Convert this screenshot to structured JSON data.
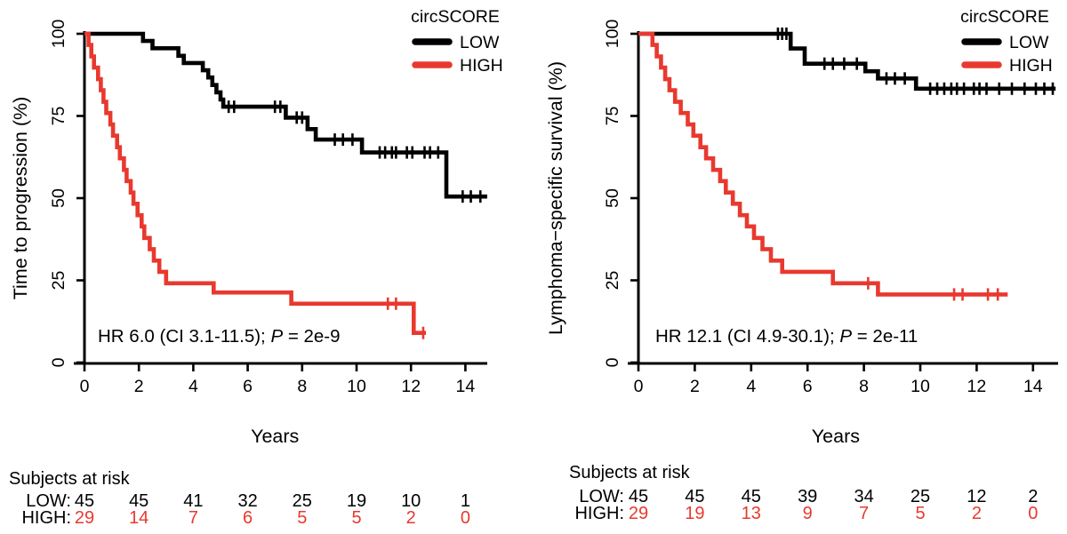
{
  "figure": {
    "legend_title": "circSCORE",
    "colors": {
      "low": "#000000",
      "high": "#e8392f"
    }
  },
  "chart_data": [
    {
      "type": "line",
      "subtype": "kaplan-meier-step-curve",
      "title": "",
      "xlabel": "Years",
      "ylabel": "Time to progression (%)",
      "xlim": [
        0,
        14.8
      ],
      "ylim": [
        0,
        100
      ],
      "xticks": [
        0,
        2,
        4,
        6,
        8,
        10,
        12,
        14
      ],
      "yticks": [
        0,
        25,
        50,
        75,
        100
      ],
      "grid": false,
      "legend": {
        "title": "circSCORE",
        "position": "top-right",
        "entries": [
          "LOW",
          "HIGH"
        ]
      },
      "annotation": {
        "before_p": "HR 6.0 (CI 3.1-11.5); ",
        "p": "P",
        "after_p": " = 2e-9"
      },
      "series": [
        {
          "name": "LOW",
          "color": "#000000",
          "end": 14.8,
          "steps": [
            [
              0,
              100
            ],
            [
              2.15,
              97.8
            ],
            [
              2.5,
              95.6
            ],
            [
              3.45,
              93.3
            ],
            [
              3.65,
              91.1
            ],
            [
              4.35,
              88.9
            ],
            [
              4.55,
              86.7
            ],
            [
              4.7,
              84.4
            ],
            [
              4.85,
              82.2
            ],
            [
              5.0,
              80.0
            ],
            [
              5.1,
              77.8
            ],
            [
              7.4,
              74.5
            ],
            [
              8.2,
              71.0
            ],
            [
              8.5,
              67.8
            ],
            [
              10.2,
              63.9
            ],
            [
              13.3,
              50.5
            ]
          ],
          "censors": [
            [
              5.3,
              77.8
            ],
            [
              5.5,
              77.8
            ],
            [
              7.0,
              77.8
            ],
            [
              7.2,
              77.8
            ],
            [
              7.8,
              74.5
            ],
            [
              8.0,
              74.5
            ],
            [
              9.2,
              67.8
            ],
            [
              9.5,
              67.8
            ],
            [
              9.85,
              67.8
            ],
            [
              10.85,
              63.9
            ],
            [
              11.05,
              63.9
            ],
            [
              11.3,
              63.9
            ],
            [
              11.45,
              63.9
            ],
            [
              11.85,
              63.9
            ],
            [
              12.05,
              63.9
            ],
            [
              12.5,
              63.9
            ],
            [
              12.7,
              63.9
            ],
            [
              13.0,
              63.9
            ],
            [
              13.9,
              50.5
            ],
            [
              14.2,
              50.5
            ],
            [
              14.55,
              50.5
            ]
          ]
        },
        {
          "name": "HIGH",
          "color": "#e8392f",
          "end": 12.55,
          "steps": [
            [
              0,
              100
            ],
            [
              0.15,
              96.6
            ],
            [
              0.25,
              93.1
            ],
            [
              0.35,
              89.7
            ],
            [
              0.5,
              86.2
            ],
            [
              0.6,
              82.8
            ],
            [
              0.7,
              79.3
            ],
            [
              0.8,
              75.9
            ],
            [
              0.95,
              72.4
            ],
            [
              1.05,
              69.0
            ],
            [
              1.2,
              65.5
            ],
            [
              1.3,
              62.1
            ],
            [
              1.45,
              58.6
            ],
            [
              1.55,
              55.2
            ],
            [
              1.7,
              51.7
            ],
            [
              1.8,
              48.3
            ],
            [
              1.95,
              44.8
            ],
            [
              2.1,
              41.4
            ],
            [
              2.2,
              37.9
            ],
            [
              2.4,
              34.5
            ],
            [
              2.55,
              31.0
            ],
            [
              2.75,
              27.6
            ],
            [
              3.0,
              24.1
            ],
            [
              4.75,
              21.3
            ],
            [
              7.6,
              17.9
            ],
            [
              12.1,
              9.0
            ]
          ],
          "censors": [
            [
              11.15,
              17.9
            ],
            [
              11.45,
              17.9
            ],
            [
              12.45,
              9.0
            ]
          ]
        }
      ],
      "risk_table": {
        "title": "Subjects at risk",
        "times": [
          0,
          2,
          4,
          6,
          8,
          10,
          12,
          14
        ],
        "rows": [
          {
            "label": "LOW:",
            "color": "#000000",
            "counts": [
              45,
              45,
              41,
              32,
              25,
              19,
              10,
              1
            ]
          },
          {
            "label": "HIGH:",
            "color": "#e8392f",
            "counts": [
              29,
              14,
              7,
              6,
              5,
              5,
              2,
              0
            ]
          }
        ]
      }
    },
    {
      "type": "line",
      "subtype": "kaplan-meier-step-curve",
      "title": "",
      "xlabel": "Years",
      "ylabel": "Lymphoma−specific survival (%)",
      "xlim": [
        0,
        14.8
      ],
      "ylim": [
        0,
        100
      ],
      "xticks": [
        0,
        2,
        4,
        6,
        8,
        10,
        12,
        14
      ],
      "yticks": [
        0,
        25,
        50,
        75,
        100
      ],
      "grid": false,
      "legend": {
        "title": "circSCORE",
        "position": "top-right",
        "entries": [
          "LOW",
          "HIGH"
        ]
      },
      "annotation": {
        "before_p": "HR 12.1 (CI 4.9-30.1); ",
        "p": "P",
        "after_p": " = 2e-11"
      },
      "series": [
        {
          "name": "LOW",
          "color": "#000000",
          "end": 14.8,
          "steps": [
            [
              0,
              100
            ],
            [
              5.4,
              95.5
            ],
            [
              5.9,
              90.9
            ],
            [
              8.05,
              88.6
            ],
            [
              8.5,
              86.4
            ],
            [
              9.85,
              83.3
            ]
          ],
          "censors": [
            [
              4.95,
              100
            ],
            [
              5.1,
              100
            ],
            [
              5.25,
              100
            ],
            [
              6.6,
              90.9
            ],
            [
              6.9,
              90.9
            ],
            [
              7.3,
              90.9
            ],
            [
              7.75,
              90.9
            ],
            [
              8.8,
              86.4
            ],
            [
              9.1,
              86.4
            ],
            [
              9.45,
              86.4
            ],
            [
              10.35,
              83.3
            ],
            [
              10.6,
              83.3
            ],
            [
              10.85,
              83.3
            ],
            [
              11.1,
              83.3
            ],
            [
              11.3,
              83.3
            ],
            [
              11.55,
              83.3
            ],
            [
              11.9,
              83.3
            ],
            [
              12.1,
              83.3
            ],
            [
              12.35,
              83.3
            ],
            [
              12.8,
              83.3
            ],
            [
              13.25,
              83.3
            ],
            [
              13.7,
              83.3
            ],
            [
              14.1,
              83.3
            ],
            [
              14.4,
              83.3
            ],
            [
              14.7,
              83.3
            ]
          ]
        },
        {
          "name": "HIGH",
          "color": "#e8392f",
          "end": 13.1,
          "steps": [
            [
              0,
              100
            ],
            [
              0.5,
              96.6
            ],
            [
              0.65,
              93.1
            ],
            [
              0.8,
              89.7
            ],
            [
              0.95,
              86.2
            ],
            [
              1.1,
              82.8
            ],
            [
              1.3,
              79.3
            ],
            [
              1.5,
              75.9
            ],
            [
              1.75,
              72.4
            ],
            [
              1.95,
              69.0
            ],
            [
              2.2,
              65.5
            ],
            [
              2.4,
              62.1
            ],
            [
              2.65,
              58.6
            ],
            [
              2.9,
              55.2
            ],
            [
              3.1,
              51.7
            ],
            [
              3.35,
              48.3
            ],
            [
              3.6,
              44.8
            ],
            [
              3.85,
              41.4
            ],
            [
              4.1,
              37.9
            ],
            [
              4.4,
              34.5
            ],
            [
              4.7,
              31.0
            ],
            [
              5.1,
              27.6
            ],
            [
              6.9,
              24.1
            ],
            [
              8.5,
              20.7
            ]
          ],
          "censors": [
            [
              8.15,
              24.1
            ],
            [
              11.2,
              20.7
            ],
            [
              11.5,
              20.7
            ],
            [
              12.4,
              20.7
            ],
            [
              12.75,
              20.7
            ]
          ]
        }
      ],
      "risk_table": {
        "title": "Subjects at risk",
        "times": [
          0,
          2,
          4,
          6,
          8,
          10,
          12,
          14
        ],
        "rows": [
          {
            "label": "LOW:",
            "color": "#000000",
            "counts": [
              45,
              45,
              45,
              39,
              34,
              25,
              12,
              2
            ]
          },
          {
            "label": "HIGH:",
            "color": "#e8392f",
            "counts": [
              29,
              19,
              13,
              9,
              7,
              5,
              2,
              0
            ]
          }
        ]
      }
    }
  ]
}
